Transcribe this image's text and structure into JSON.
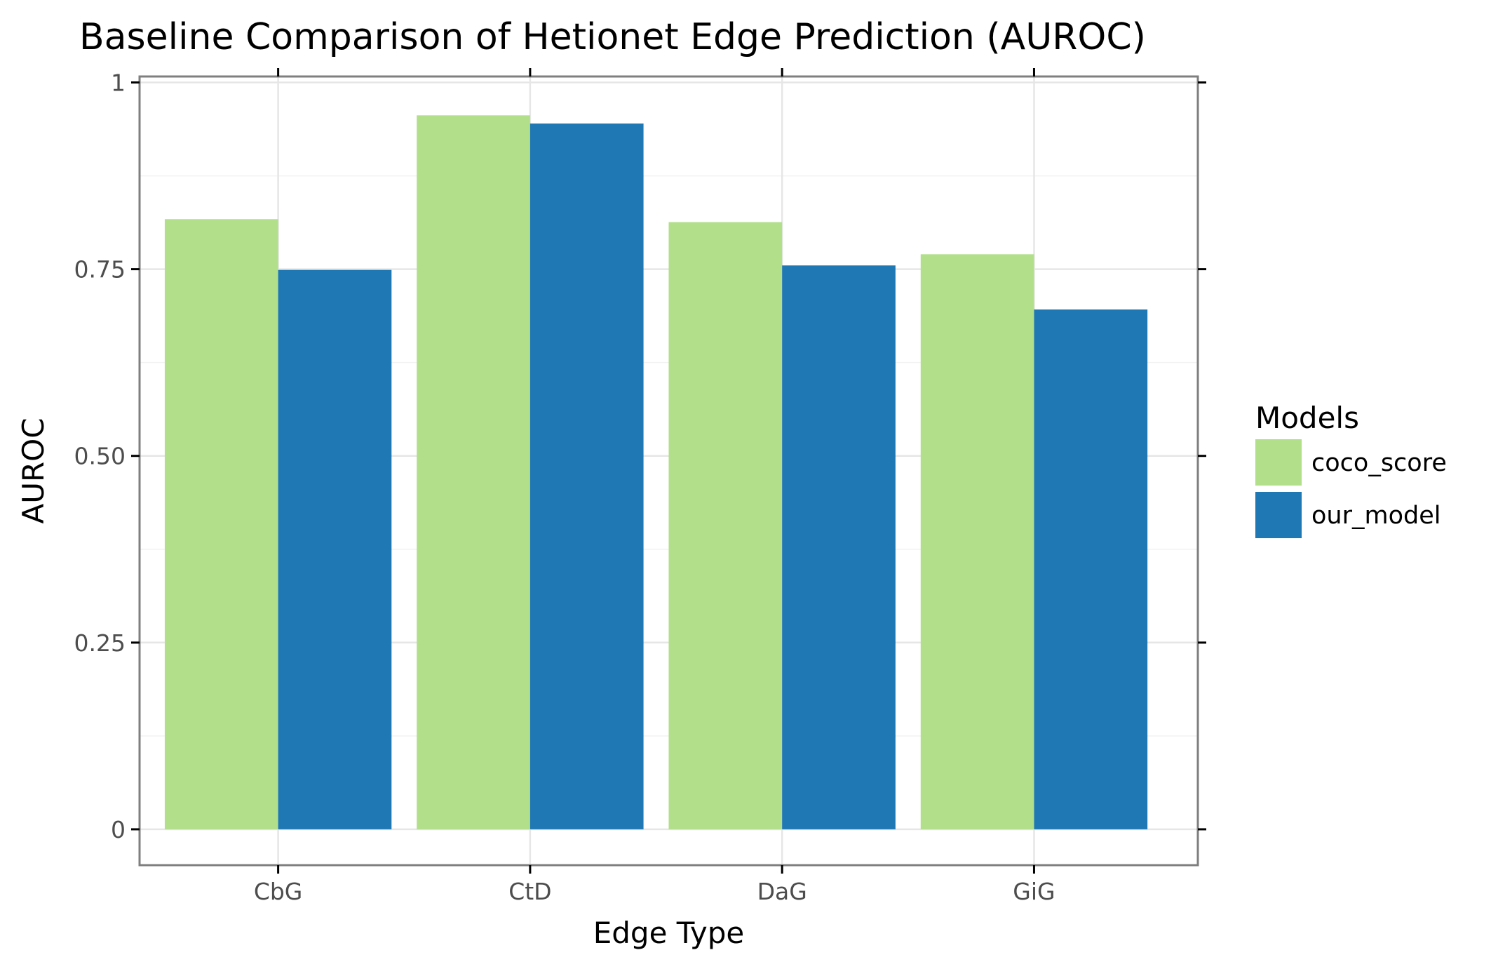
{
  "chart_data": {
    "type": "bar",
    "title": "Baseline Comparison of Hetionet Edge Prediction (AUROC)",
    "xlabel": "Edge Type",
    "ylabel": "AUROC",
    "categories": [
      "CbG",
      "CtD",
      "DaG",
      "GiG"
    ],
    "series": [
      {
        "name": "coco_score",
        "color": "#b2df8a",
        "values": [
          0.817,
          0.956,
          0.813,
          0.77
        ]
      },
      {
        "name": "our_model",
        "color": "#1f78b4",
        "values": [
          0.749,
          0.945,
          0.755,
          0.696
        ]
      }
    ],
    "ylim": [
      -0.048,
      1.008
    ],
    "yticks": [
      0,
      0.25,
      0.5,
      0.75,
      1
    ],
    "ytick_labels": [
      "0",
      "0.25",
      "0.50",
      "0.75",
      "1"
    ],
    "grid": true,
    "legend": {
      "title": "Models",
      "position": "right"
    }
  }
}
